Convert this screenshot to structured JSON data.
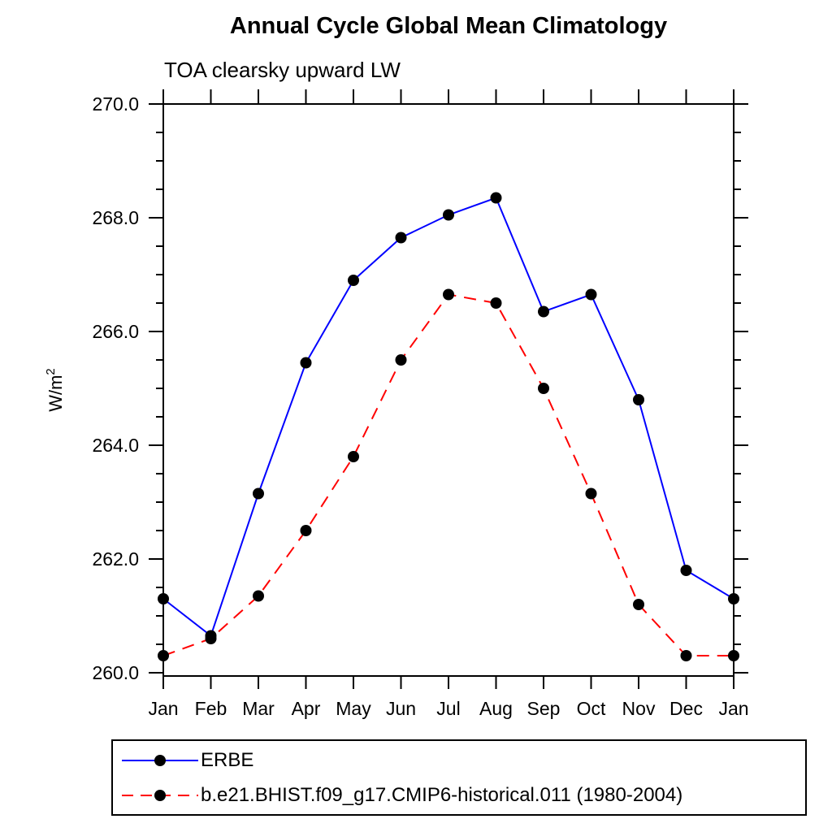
{
  "page": {
    "background": "#ffffff",
    "axis_color": "#000000"
  },
  "chart_data": {
    "type": "line",
    "title": "Annual Cycle Global Mean Climatology",
    "subtitle": "TOA clearsky upward LW",
    "ylabel": {
      "base": "W/m",
      "sup": "2"
    },
    "xlabel": "",
    "categories": [
      "Jan",
      "Feb",
      "Mar",
      "Apr",
      "May",
      "Jun",
      "Jul",
      "Aug",
      "Sep",
      "Oct",
      "Nov",
      "Dec",
      "Jan"
    ],
    "ylim": [
      260.0,
      270.0
    ],
    "y_major_step": 2.0,
    "y_minor_step": 0.5,
    "y_tick_labels": [
      "260.0",
      "262.0",
      "264.0",
      "266.0",
      "268.0",
      "270.0"
    ],
    "grid": false,
    "legend_position": "bottom-left",
    "marker": "filled-circle",
    "marker_color": "#000000",
    "series": [
      {
        "name": "ERBE",
        "color": "#0000ff",
        "style": "solid",
        "values": [
          261.3,
          260.65,
          263.15,
          265.45,
          266.9,
          267.65,
          268.05,
          268.35,
          266.35,
          266.65,
          264.8,
          261.8,
          261.3
        ]
      },
      {
        "name": "b.e21.BHIST.f09_g17.CMIP6-historical.011 (1980-2004)",
        "color": "#ff0000",
        "style": "dashed",
        "values": [
          260.3,
          260.6,
          261.35,
          262.5,
          263.8,
          265.5,
          266.65,
          266.5,
          265.0,
          263.15,
          261.2,
          260.3,
          260.3
        ]
      }
    ]
  }
}
